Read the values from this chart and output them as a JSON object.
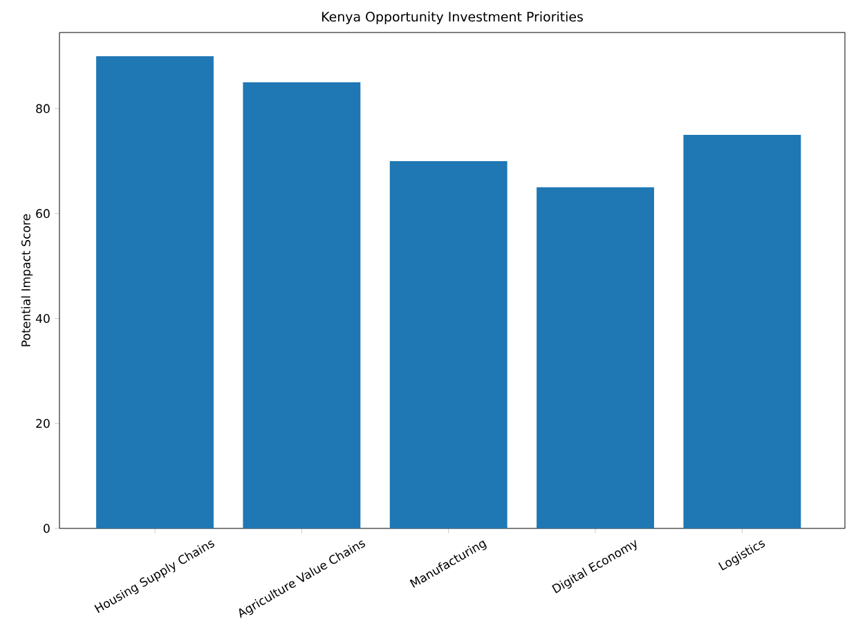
{
  "chart_data": {
    "type": "bar",
    "title": "Kenya Opportunity Investment Priorities",
    "ylabel": "Potential Impact Score",
    "categories": [
      "Housing Supply Chains",
      "Agriculture Value Chains",
      "Manufacturing",
      "Digital Economy",
      "Logistics"
    ],
    "values": [
      90,
      85,
      70,
      65,
      75
    ],
    "color": "#1f77b4",
    "ylim": [
      0,
      94.5
    ],
    "yticks": [
      0,
      20,
      40,
      60,
      80
    ]
  }
}
